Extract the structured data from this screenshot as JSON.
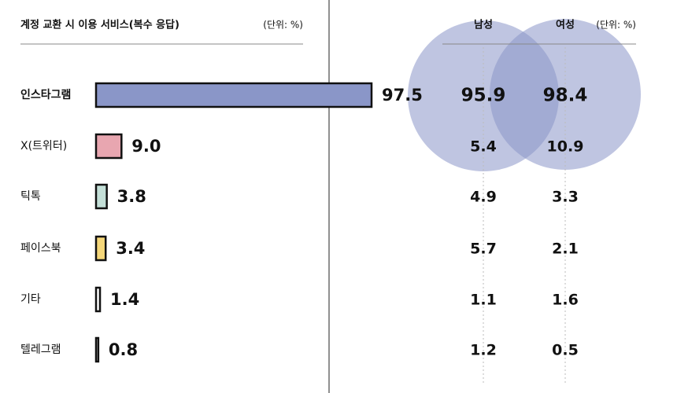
{
  "chart_data": {
    "type": "bar",
    "title": "계정 교환 시 이용 서비스(복수 응답)",
    "unit": "(단위: %)",
    "categories": [
      "인스타그램",
      "X(트위터)",
      "틱톡",
      "페이스북",
      "기타",
      "텔레그램"
    ],
    "values": [
      97.5,
      9.0,
      3.8,
      3.4,
      1.4,
      0.8
    ],
    "value_labels": [
      "97.5",
      "9.0",
      "3.8",
      "3.4",
      "1.4",
      "0.8"
    ],
    "colors": [
      "#8a96c8",
      "#e8a6b0",
      "#c4e0d8",
      "#f5d77a",
      "#ffffff",
      "#ffffff"
    ],
    "groups": [
      {
        "name": "남성",
        "values": [
          95.9,
          5.4,
          4.9,
          5.7,
          1.1,
          1.2
        ]
      },
      {
        "name": "여성",
        "values": [
          98.4,
          10.9,
          3.3,
          2.1,
          1.6,
          0.5
        ]
      }
    ]
  }
}
